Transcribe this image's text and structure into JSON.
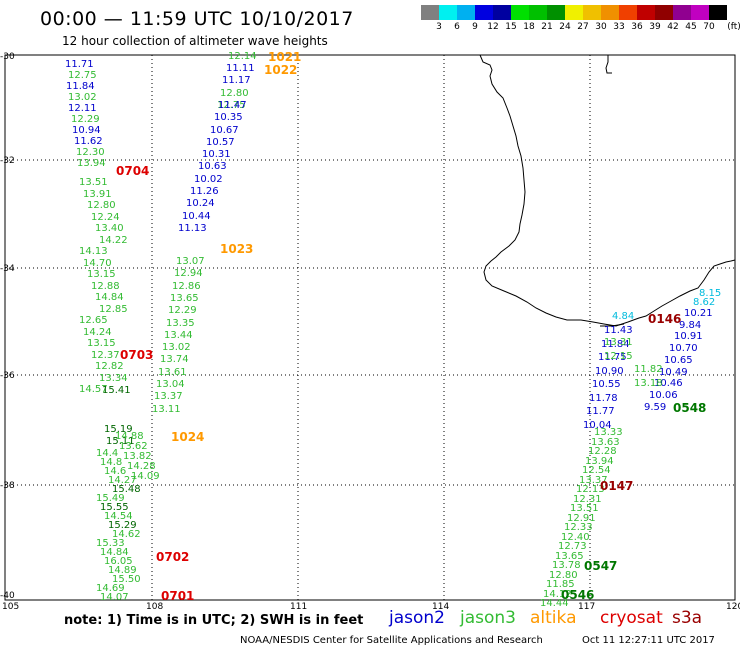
{
  "header": {
    "title": "00:00 — 11:59 UTC 10/10/2017",
    "subtitle": "12 hour collection of altimeter wave heights"
  },
  "scale": {
    "colors": [
      "#808080",
      "#00f0f0",
      "#00b0f0",
      "#0000e0",
      "#0000a0",
      "#00e000",
      "#00c000",
      "#009000",
      "#f0f000",
      "#f0c000",
      "#f09000",
      "#f04000",
      "#c00000",
      "#900000",
      "#900090",
      "#c000c0",
      "#000000"
    ],
    "labels": [
      "3",
      "6",
      "9",
      "12",
      "15",
      "18",
      "21",
      "24",
      "27",
      "30",
      "33",
      "36",
      "39",
      "42",
      "45",
      "70"
    ],
    "unit": "(ft)"
  },
  "axes": {
    "lon_labels": [
      "105",
      "108",
      "111",
      "114",
      "117",
      "120"
    ],
    "lat_labels": [
      "-30",
      "-32",
      "-34",
      "-36",
      "-38",
      "-40"
    ]
  },
  "satellite_colors": {
    "jason2": "#0000cc",
    "jason3": "#33bb33",
    "altika": "#ff9900",
    "cryosat": "#dd0000",
    "s3a": "#990000",
    "dark_green": "#007700",
    "cyan": "#00bbdd"
  },
  "track_a": {
    "jason2": [
      "11.71",
      "11.84",
      "12.11",
      "10.94",
      "11.62"
    ],
    "jason3": [
      "12.75",
      "13.02",
      "12.29",
      "12.30",
      "13.94",
      "13.51",
      "13.91",
      "12.80",
      "12.24",
      "13.40",
      "14.22",
      "14.13",
      "14.70",
      "13.15",
      "12.88",
      "14.84",
      "12.85",
      "12.65",
      "14.24",
      "13.15",
      "12.37",
      "12.82",
      "13.34",
      "14.57"
    ],
    "bold": [
      "15.41",
      "15.19",
      "15.11"
    ]
  },
  "track_b": {
    "values": [
      "14.4",
      "14.8",
      "14.6",
      "14.27",
      "15.48",
      "15.49",
      "15.55",
      "14.54",
      "15.29",
      "14.62",
      "15.33",
      "14.84",
      "16.05",
      "14.89",
      "15.50",
      "14.69",
      "14.07"
    ],
    "mixed": [
      "14.88",
      "13.62",
      "13.82",
      "14.28",
      "14.09"
    ]
  },
  "track_c": {
    "jason3_top": [
      "12.14",
      "12.80",
      "12.75"
    ],
    "jason2": [
      "11.11",
      "11.17",
      "11.47",
      "10.35",
      "10.67",
      "10.57",
      "10.31",
      "10.63",
      "10.02",
      "11.26",
      "10.24",
      "10.44",
      "11.13"
    ],
    "jason3_bottom": [
      "13.07",
      "12.94",
      "12.86",
      "13.65",
      "12.29",
      "13.35",
      "13.44",
      "13.02",
      "13.74",
      "13.61",
      "13.04",
      "13.37",
      "13.11"
    ]
  },
  "track_d": {
    "cyan": [
      "8.15",
      "8.62",
      "4.84"
    ],
    "jason2": [
      "10.21",
      "9.84",
      "10.91",
      "10.70",
      "10.65",
      "10.49",
      "10.46",
      "10.06",
      "9.59",
      "11.43",
      "11.84",
      "11.75",
      "10.90",
      "10.55",
      "11.78",
      "11.77",
      "10.04"
    ],
    "jason3": [
      "13.31",
      "12.15",
      "11.82",
      "13.18",
      "13.33",
      "13.63",
      "12.28",
      "13.94",
      "12.54",
      "13.37",
      "12.13",
      "12.31",
      "13.51",
      "12.91",
      "12.33",
      "12.40",
      "12.73",
      "13.65",
      "13.78",
      "12.80",
      "11.85",
      "14.12",
      "14.44"
    ]
  },
  "pass_times": {
    "t1021": "1021",
    "t1022": "1022",
    "t1023": "1023",
    "t1024": "1024",
    "t0704": "0704",
    "t0703": "0703",
    "t0702": "0702",
    "t0701": "0701",
    "t0146": "0146",
    "t0147": "0147",
    "t0548": "0548",
    "t0547": "0547",
    "t0546": "0546"
  },
  "footer": {
    "note": "note: 1) Time is in UTC; 2) SWH is in feet",
    "satellites": [
      "jason2",
      "jason3",
      "altika",
      "cryosat",
      "s3a"
    ],
    "credit": "NOAA/NESDIS Center for Satellite Applications and Research",
    "timestamp": "Oct 11 12:27:11 UTC 2017"
  }
}
